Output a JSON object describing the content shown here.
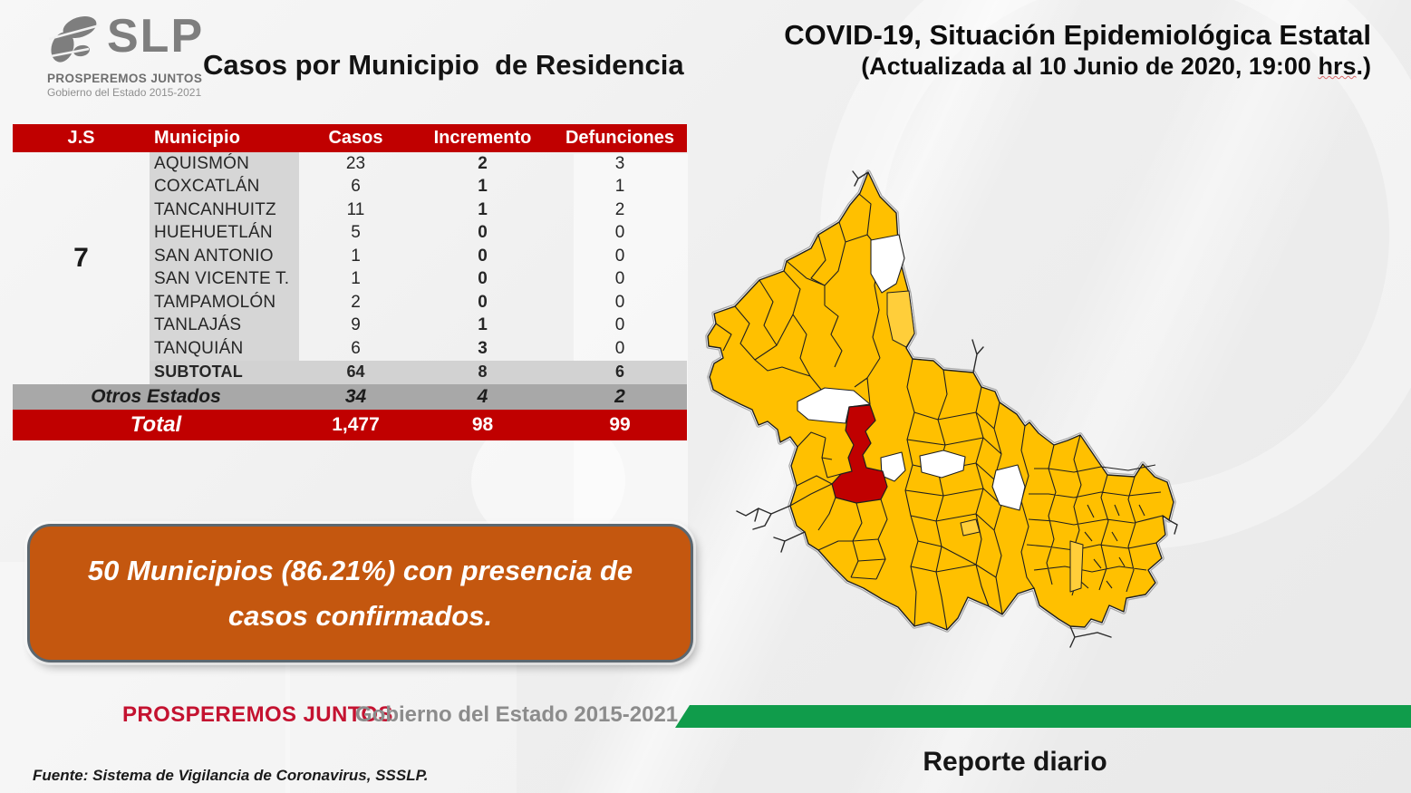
{
  "logo": {
    "icon": "slp-beans-icon",
    "acronym": "SLP",
    "tagline": "PROSPEREMOS JUNTOS",
    "subtitle": "Gobierno del Estado 2015-2021"
  },
  "header": {
    "left_title": "Casos por Municipio  de Residencia",
    "right_title_line1": "COVID-19, Situación Epidemiológica Estatal",
    "right_title_line2_prefix": "(Actualizada al 10 Junio de 2020, 19:00 ",
    "right_title_line2_hrs": "hrs",
    "right_title_line2_suffix": ".)"
  },
  "table": {
    "columns": [
      "J.S",
      "Municipio",
      "Casos",
      "Incremento",
      "Defunciones"
    ],
    "js_number": "7",
    "rows": [
      {
        "municipio": "AQUISMÓN",
        "casos": "23",
        "incremento": "2",
        "defunciones": "3"
      },
      {
        "municipio": "COXCATLÁN",
        "casos": "6",
        "incremento": "1",
        "defunciones": "1"
      },
      {
        "municipio": "TANCANHUITZ",
        "casos": "11",
        "incremento": "1",
        "defunciones": "2"
      },
      {
        "municipio": "HUEHUETLÁN",
        "casos": "5",
        "incremento": "0",
        "defunciones": "0"
      },
      {
        "municipio": "SAN ANTONIO",
        "casos": "1",
        "incremento": "0",
        "defunciones": "0"
      },
      {
        "municipio": "SAN VICENTE T.",
        "casos": "1",
        "incremento": "0",
        "defunciones": "0"
      },
      {
        "municipio": "TAMPAMOLÓN",
        "casos": "2",
        "incremento": "0",
        "defunciones": "0"
      },
      {
        "municipio": "TANLAJÁS",
        "casos": "9",
        "incremento": "1",
        "defunciones": "0"
      },
      {
        "municipio": "TANQUIÁN",
        "casos": "6",
        "incremento": "3",
        "defunciones": "0"
      }
    ],
    "subtotal": {
      "label": "SUBTOTAL",
      "casos": "64",
      "incremento": "8",
      "defunciones": "6"
    },
    "otros": {
      "label": "Otros Estados",
      "casos": "34",
      "incremento": "4",
      "defunciones": "2"
    },
    "total": {
      "label": "Total",
      "casos": "1,477",
      "incremento": "98",
      "defunciones": "99"
    }
  },
  "callout": {
    "text": "50 Municipios (86.21%) con presencia de casos confirmados."
  },
  "map": {
    "name": "san-luis-potosi-municipal-map",
    "colors": {
      "with_cases": "#FFC000",
      "highlight_capital": "#C00000",
      "no_cases": "#FFFFFF",
      "lighter_cases": "#FFCE3A",
      "boundary": "#1f1f1f"
    }
  },
  "footer": {
    "brand": "PROSPEREMOS JUNTOS",
    "government": "Gobierno del Estado 2015-2021",
    "report": "Reporte diario",
    "source": "Fuente: Sistema de Vigilancia de Coronavirus, SSSLP."
  },
  "colors": {
    "table_header_red": "#C00000",
    "total_row_red": "#C00000",
    "municipio_band_gray": "#D6D6D6",
    "otros_row_gray": "#A8A8A8",
    "callout_orange": "#C4570F",
    "footer_green": "#109C4B",
    "footer_brand_red": "#C41230"
  }
}
